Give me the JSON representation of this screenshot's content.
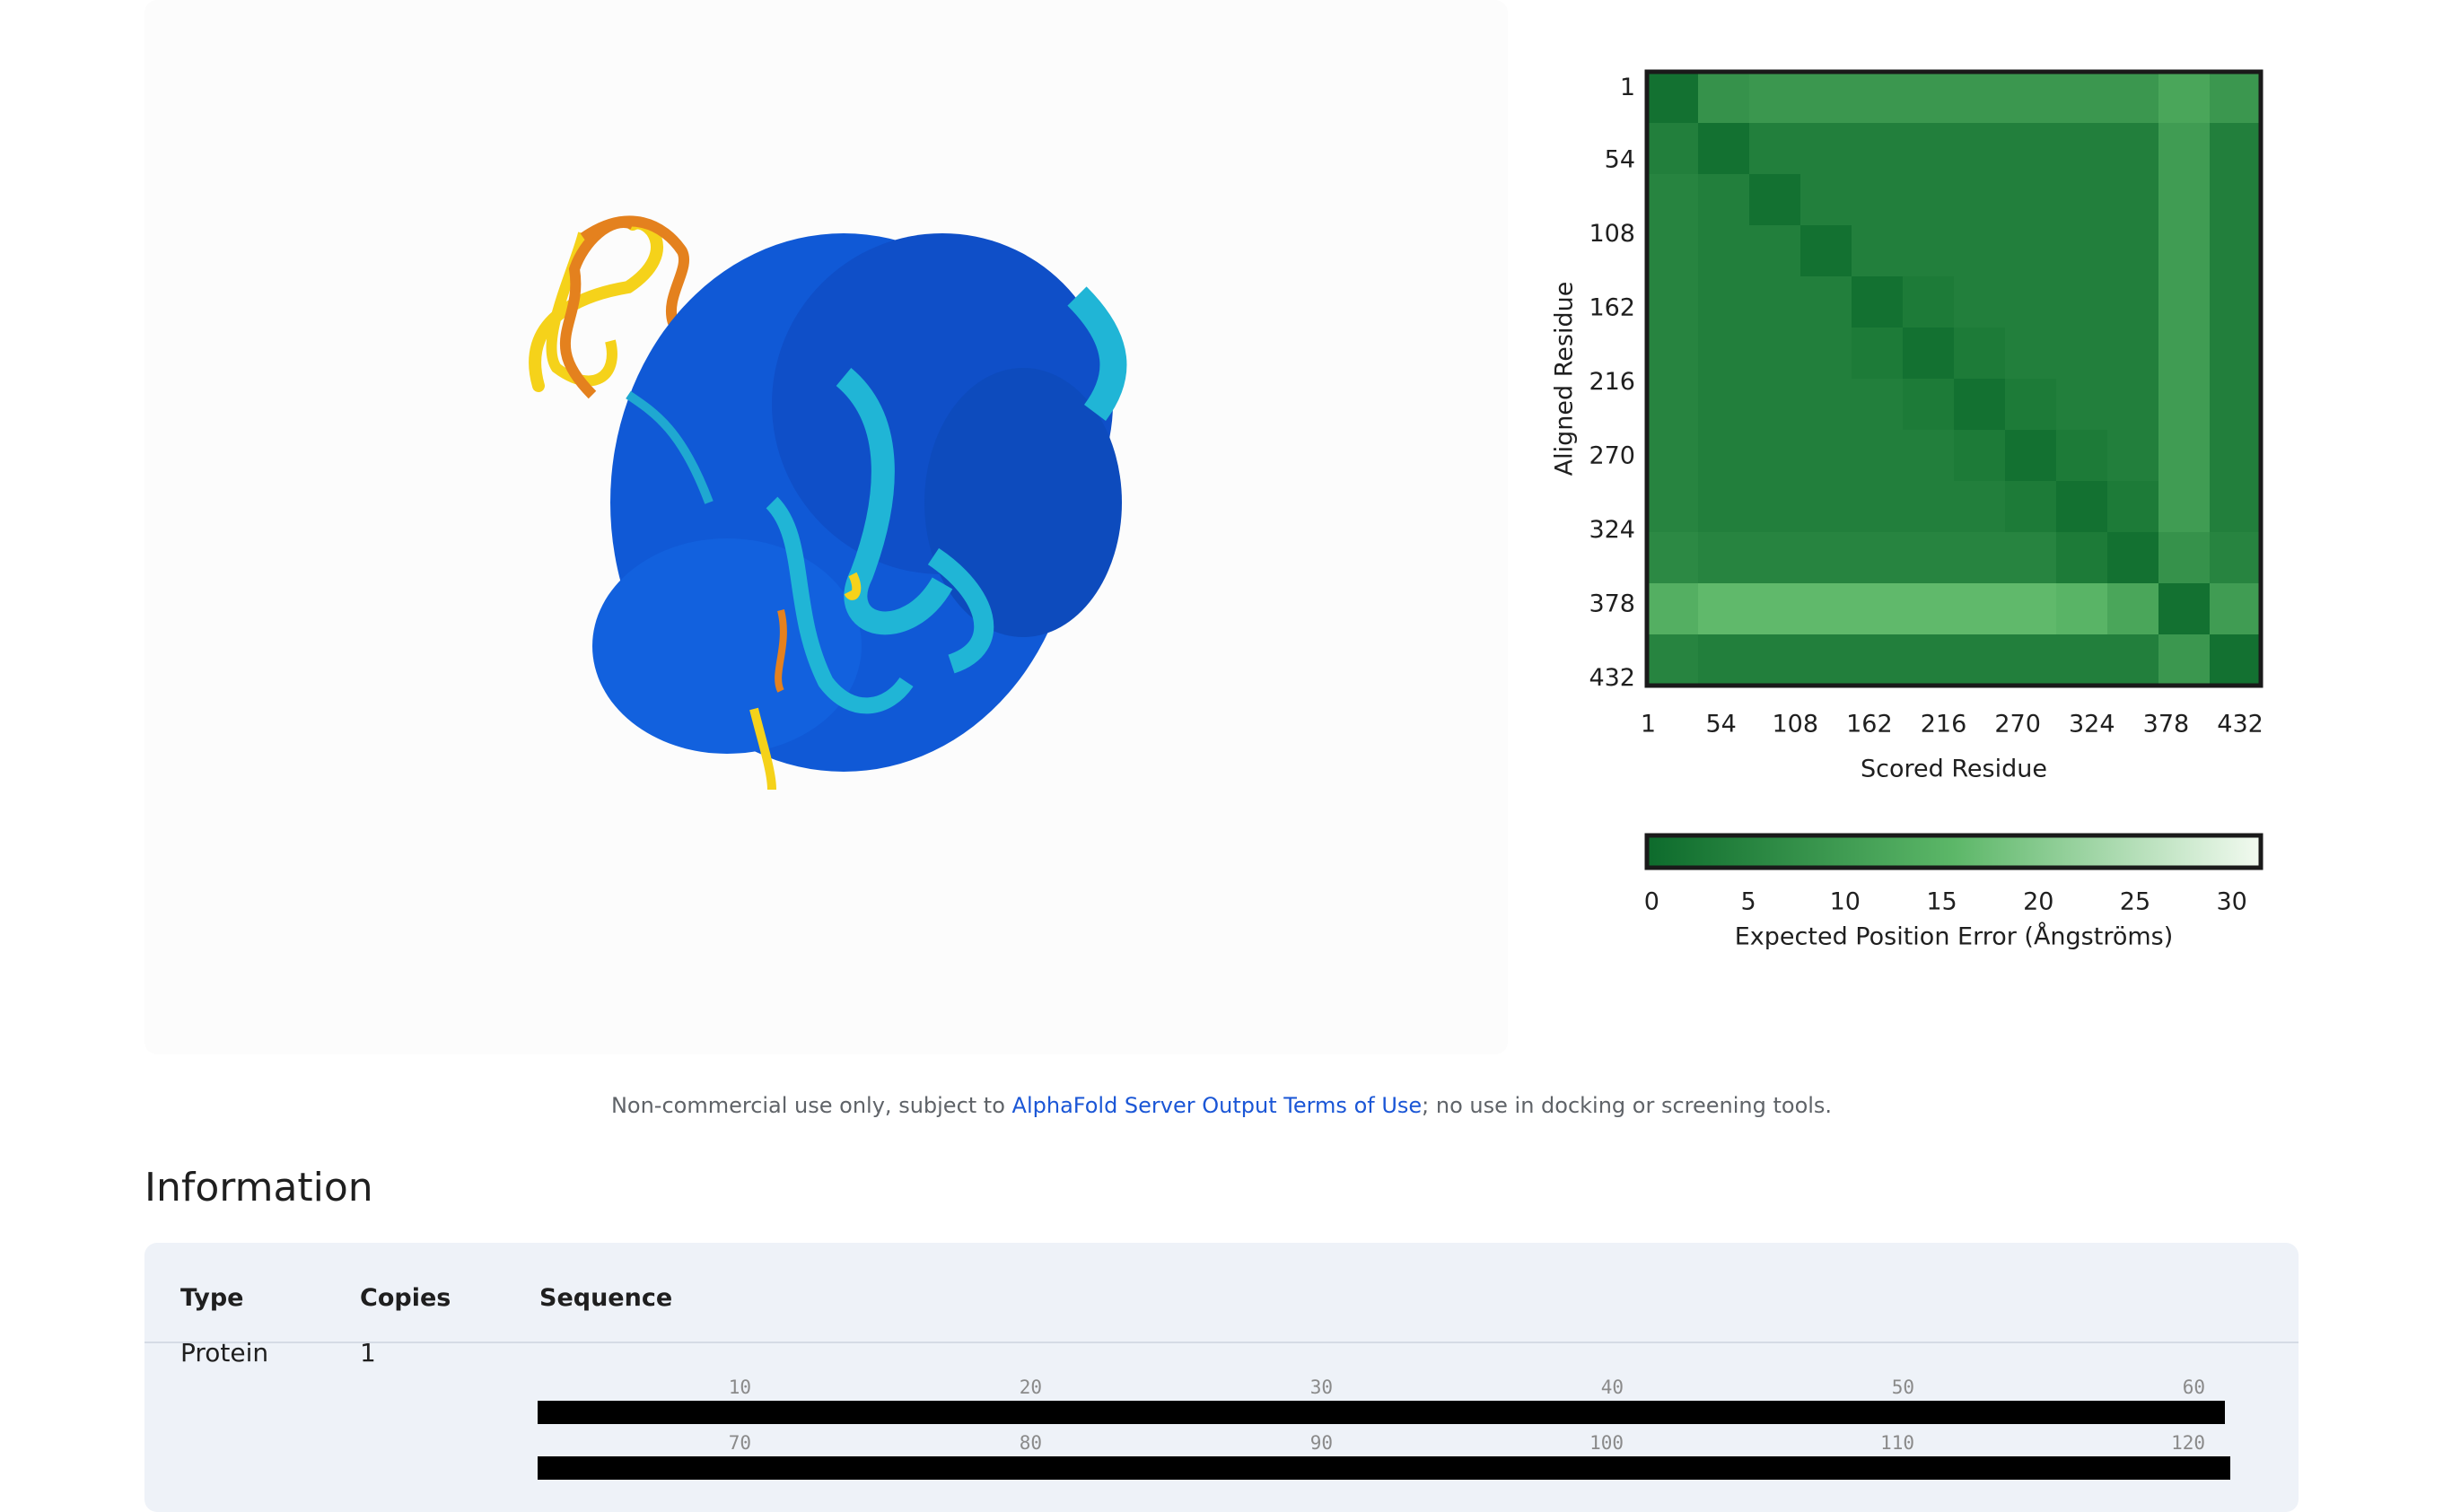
{
  "chart_data": {
    "type": "heatmap",
    "xlabel": "Scored Residue",
    "ylabel": "Aligned Residue",
    "xlim": [
      0,
      447
    ],
    "ylim": [
      -11,
      437
    ],
    "xticks": [
      1,
      54,
      108,
      162,
      216,
      270,
      324,
      378,
      432
    ],
    "yticks": [
      1,
      54,
      108,
      162,
      216,
      270,
      324,
      378,
      432
    ],
    "values": [
      [
        1,
        8,
        9,
        9,
        9,
        9,
        9,
        9,
        9,
        9,
        12,
        9
      ],
      [
        4,
        1,
        4,
        4,
        4,
        4,
        4,
        4,
        4,
        4,
        10,
        4
      ],
      [
        5,
        4,
        1,
        4,
        4,
        4,
        4,
        4,
        4,
        4,
        10,
        4
      ],
      [
        5,
        4,
        4,
        1,
        4,
        4,
        4,
        4,
        4,
        4,
        10,
        4
      ],
      [
        5,
        4,
        4,
        4,
        1,
        3,
        4,
        4,
        4,
        4,
        10,
        4
      ],
      [
        5,
        4,
        4,
        4,
        3,
        1,
        3,
        4,
        4,
        4,
        10,
        4
      ],
      [
        5,
        4,
        4,
        4,
        4,
        3,
        1,
        3,
        4,
        4,
        10,
        4
      ],
      [
        5,
        4,
        4,
        4,
        4,
        4,
        3,
        1,
        3,
        4,
        10,
        4
      ],
      [
        5,
        4,
        4,
        4,
        4,
        4,
        4,
        3,
        1,
        3,
        10,
        4
      ],
      [
        6,
        5,
        5,
        5,
        5,
        5,
        5,
        5,
        3,
        1,
        8,
        5
      ],
      [
        14,
        16,
        16,
        16,
        16,
        16,
        16,
        16,
        15,
        12,
        1,
        10
      ],
      [
        5,
        4,
        4,
        4,
        4,
        4,
        4,
        4,
        4,
        4,
        9,
        1
      ]
    ],
    "colors": [
      "#0d6b2c",
      "#5cb768",
      "#f2faf0"
    ],
    "colorbar": {
      "label": "Expected Position Error (Ångströms)",
      "lim": [
        -0.25,
        31.5
      ],
      "ticks": [
        0,
        5,
        10,
        15,
        20,
        25,
        30
      ]
    }
  },
  "disclaimer": {
    "before": "Non-commercial use only, subject to ",
    "link": "AlphaFold Server Output Terms of Use",
    "after": "; no use in docking or screening tools."
  },
  "information": {
    "title": "Information",
    "headers": [
      "Type",
      "Copies",
      "Sequence"
    ],
    "rows": [
      {
        "type": "Protein",
        "copies": "1",
        "sequence_ticks": [
          [
            "10",
            "20",
            "30",
            "40",
            "50",
            "60"
          ],
          [
            "70",
            "80",
            "90",
            "100",
            "110",
            "120"
          ]
        ]
      }
    ]
  }
}
